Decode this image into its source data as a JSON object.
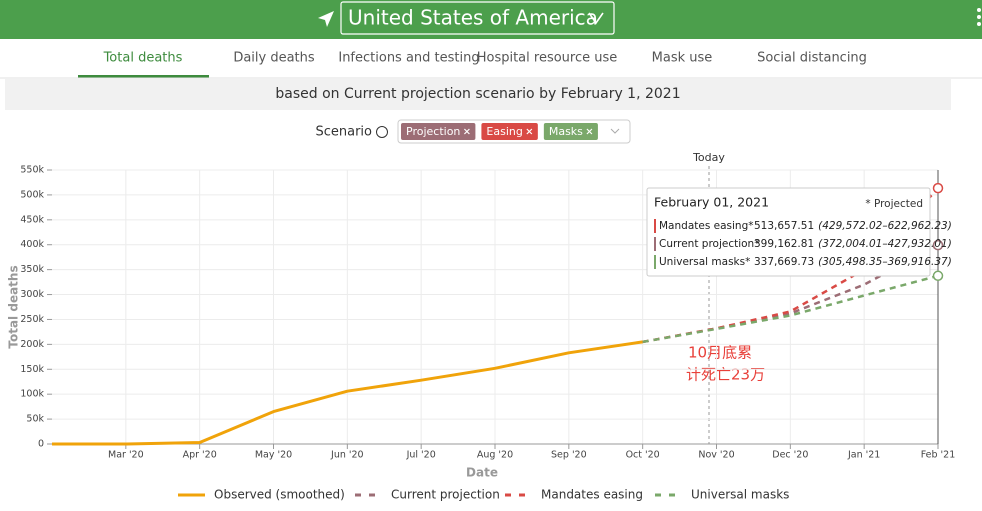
{
  "header": {
    "location": "United States of America"
  },
  "tabs": [
    "Total deaths",
    "Daily deaths",
    "Infections and testing",
    "Hospital resource use",
    "Mask use",
    "Social distancing"
  ],
  "active_tab": 0,
  "subtitle": "based on Current projection scenario by February 1, 2021",
  "scenario": {
    "label": "Scenario",
    "chips": [
      {
        "label": "Projection",
        "color": "#9c6d75"
      },
      {
        "label": "Easing",
        "color": "#d94a45"
      },
      {
        "label": "Masks",
        "color": "#7aa86a"
      }
    ]
  },
  "chart_data": {
    "type": "line",
    "x_label": "Date",
    "y_label": "Total deaths",
    "today_label": "Today",
    "categories": [
      null,
      "Mar '20",
      "Apr '20",
      "May '20",
      "Jun '20",
      "Jul '20",
      "Aug '20",
      "Sep '20",
      "Oct '20",
      "Nov '20",
      "Dec '20",
      "Jan '21",
      "Feb '21"
    ],
    "ylim": [
      0,
      550000
    ],
    "yticks": [
      {
        "value": 0,
        "label": "0"
      },
      {
        "value": 50000,
        "label": "50k"
      },
      {
        "value": 100000,
        "label": "100k"
      },
      {
        "value": 150000,
        "label": "150k"
      },
      {
        "value": 200000,
        "label": "200k"
      },
      {
        "value": 250000,
        "label": "250k"
      },
      {
        "value": 300000,
        "label": "300k"
      },
      {
        "value": 350000,
        "label": "350k"
      },
      {
        "value": 400000,
        "label": "400k"
      },
      {
        "value": 450000,
        "label": "450k"
      },
      {
        "value": 500000,
        "label": "500k"
      },
      {
        "value": 550000,
        "label": "550k"
      }
    ],
    "grid": true,
    "series": [
      {
        "name": "Observed (smoothed)",
        "color": "#f0a30a",
        "line_style": "solid",
        "values": [
          0,
          0,
          3000,
          65000,
          106000,
          128000,
          152000,
          183000,
          205000,
          null,
          null,
          null,
          null
        ]
      },
      {
        "name": "Current projection",
        "color": "#9c6d75",
        "line_style": "dashed",
        "values": [
          null,
          null,
          null,
          null,
          null,
          null,
          null,
          null,
          205000,
          232000,
          262000,
          320000,
          399162.81
        ]
      },
      {
        "name": "Mandates easing",
        "color": "#d94a45",
        "line_style": "dashed",
        "values": [
          null,
          null,
          null,
          null,
          null,
          null,
          null,
          null,
          205000,
          232000,
          266000,
          350000,
          513657.51
        ]
      },
      {
        "name": "Universal masks",
        "color": "#7aa86a",
        "line_style": "dashed",
        "values": [
          null,
          null,
          null,
          null,
          null,
          null,
          null,
          null,
          205000,
          231000,
          258000,
          298000,
          337669.73
        ]
      }
    ]
  },
  "tooltip": {
    "title": "February 01, 2021",
    "note": "* Projected",
    "rows": [
      {
        "name": "Mandates easing*",
        "value": "513,657.51",
        "range": "(429,572.02–622,962.23)",
        "color": "#d94a45"
      },
      {
        "name": "Current projection*",
        "value": "399,162.81",
        "range": "(372,004.01–427,932.01)",
        "color": "#9c6d75"
      },
      {
        "name": "Universal masks*",
        "value": "337,669.73",
        "range": "(305,498.35–369,916.37)",
        "color": "#7aa86a"
      }
    ]
  },
  "annotation": [
    "10月底累",
    "计死亡23万"
  ]
}
